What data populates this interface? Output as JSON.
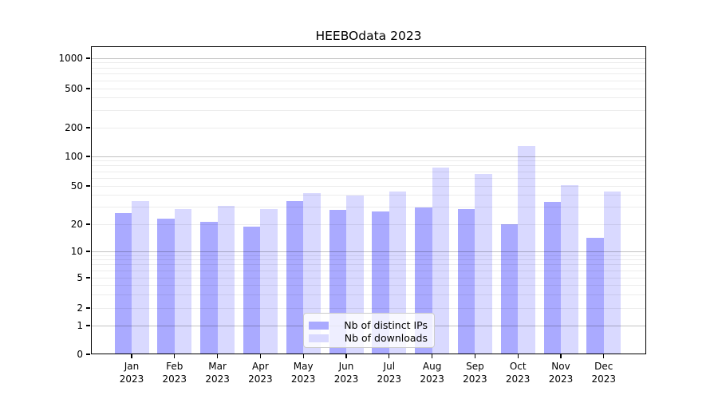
{
  "title": "HEEBOdata 2023",
  "colors": {
    "bar_distinct_ips": "#aaaaff",
    "bar_downloads": "#d9d9ff",
    "grid_major": "rgba(0,0,0,0.24)",
    "grid_minor": "rgba(0,0,0,0.075)",
    "axis": "#000000"
  },
  "legend": {
    "items": [
      {
        "label": "Nb of distinct IPs",
        "color": "#aaaaff"
      },
      {
        "label": "Nb of downloads",
        "color": "#d9d9ff"
      }
    ]
  },
  "chart_data": {
    "type": "bar",
    "title": "HEEBOdata 2023",
    "categories": [
      "Jan 2023",
      "Feb 2023",
      "Mar 2023",
      "Apr 2023",
      "May 2023",
      "Jun 2023",
      "Jul 2023",
      "Aug 2023",
      "Sep 2023",
      "Oct 2023",
      "Nov 2023",
      "Dec 2023"
    ],
    "x_tick_month": [
      "Jan",
      "Feb",
      "Mar",
      "Apr",
      "May",
      "Jun",
      "Jul",
      "Aug",
      "Sep",
      "Oct",
      "Nov",
      "Dec"
    ],
    "x_tick_year": "2023",
    "series": [
      {
        "name": "Nb of distinct IPs",
        "color": "#aaaaff",
        "values": [
          26,
          23,
          21,
          19,
          35,
          28,
          27,
          30,
          29,
          20,
          34,
          14
        ]
      },
      {
        "name": "Nb of downloads",
        "color": "#d9d9ff",
        "values": [
          35,
          29,
          31,
          29,
          42,
          40,
          44,
          77,
          66,
          128,
          51,
          44
        ]
      }
    ],
    "xlabel": "",
    "ylabel": "",
    "y_axis": {
      "scale": "symlog",
      "ticks": [
        0,
        1,
        2,
        5,
        10,
        20,
        50,
        100,
        200,
        500,
        1000
      ],
      "ylim": [
        0,
        1200
      ]
    },
    "grid": "on",
    "legend_position": "lower center"
  }
}
